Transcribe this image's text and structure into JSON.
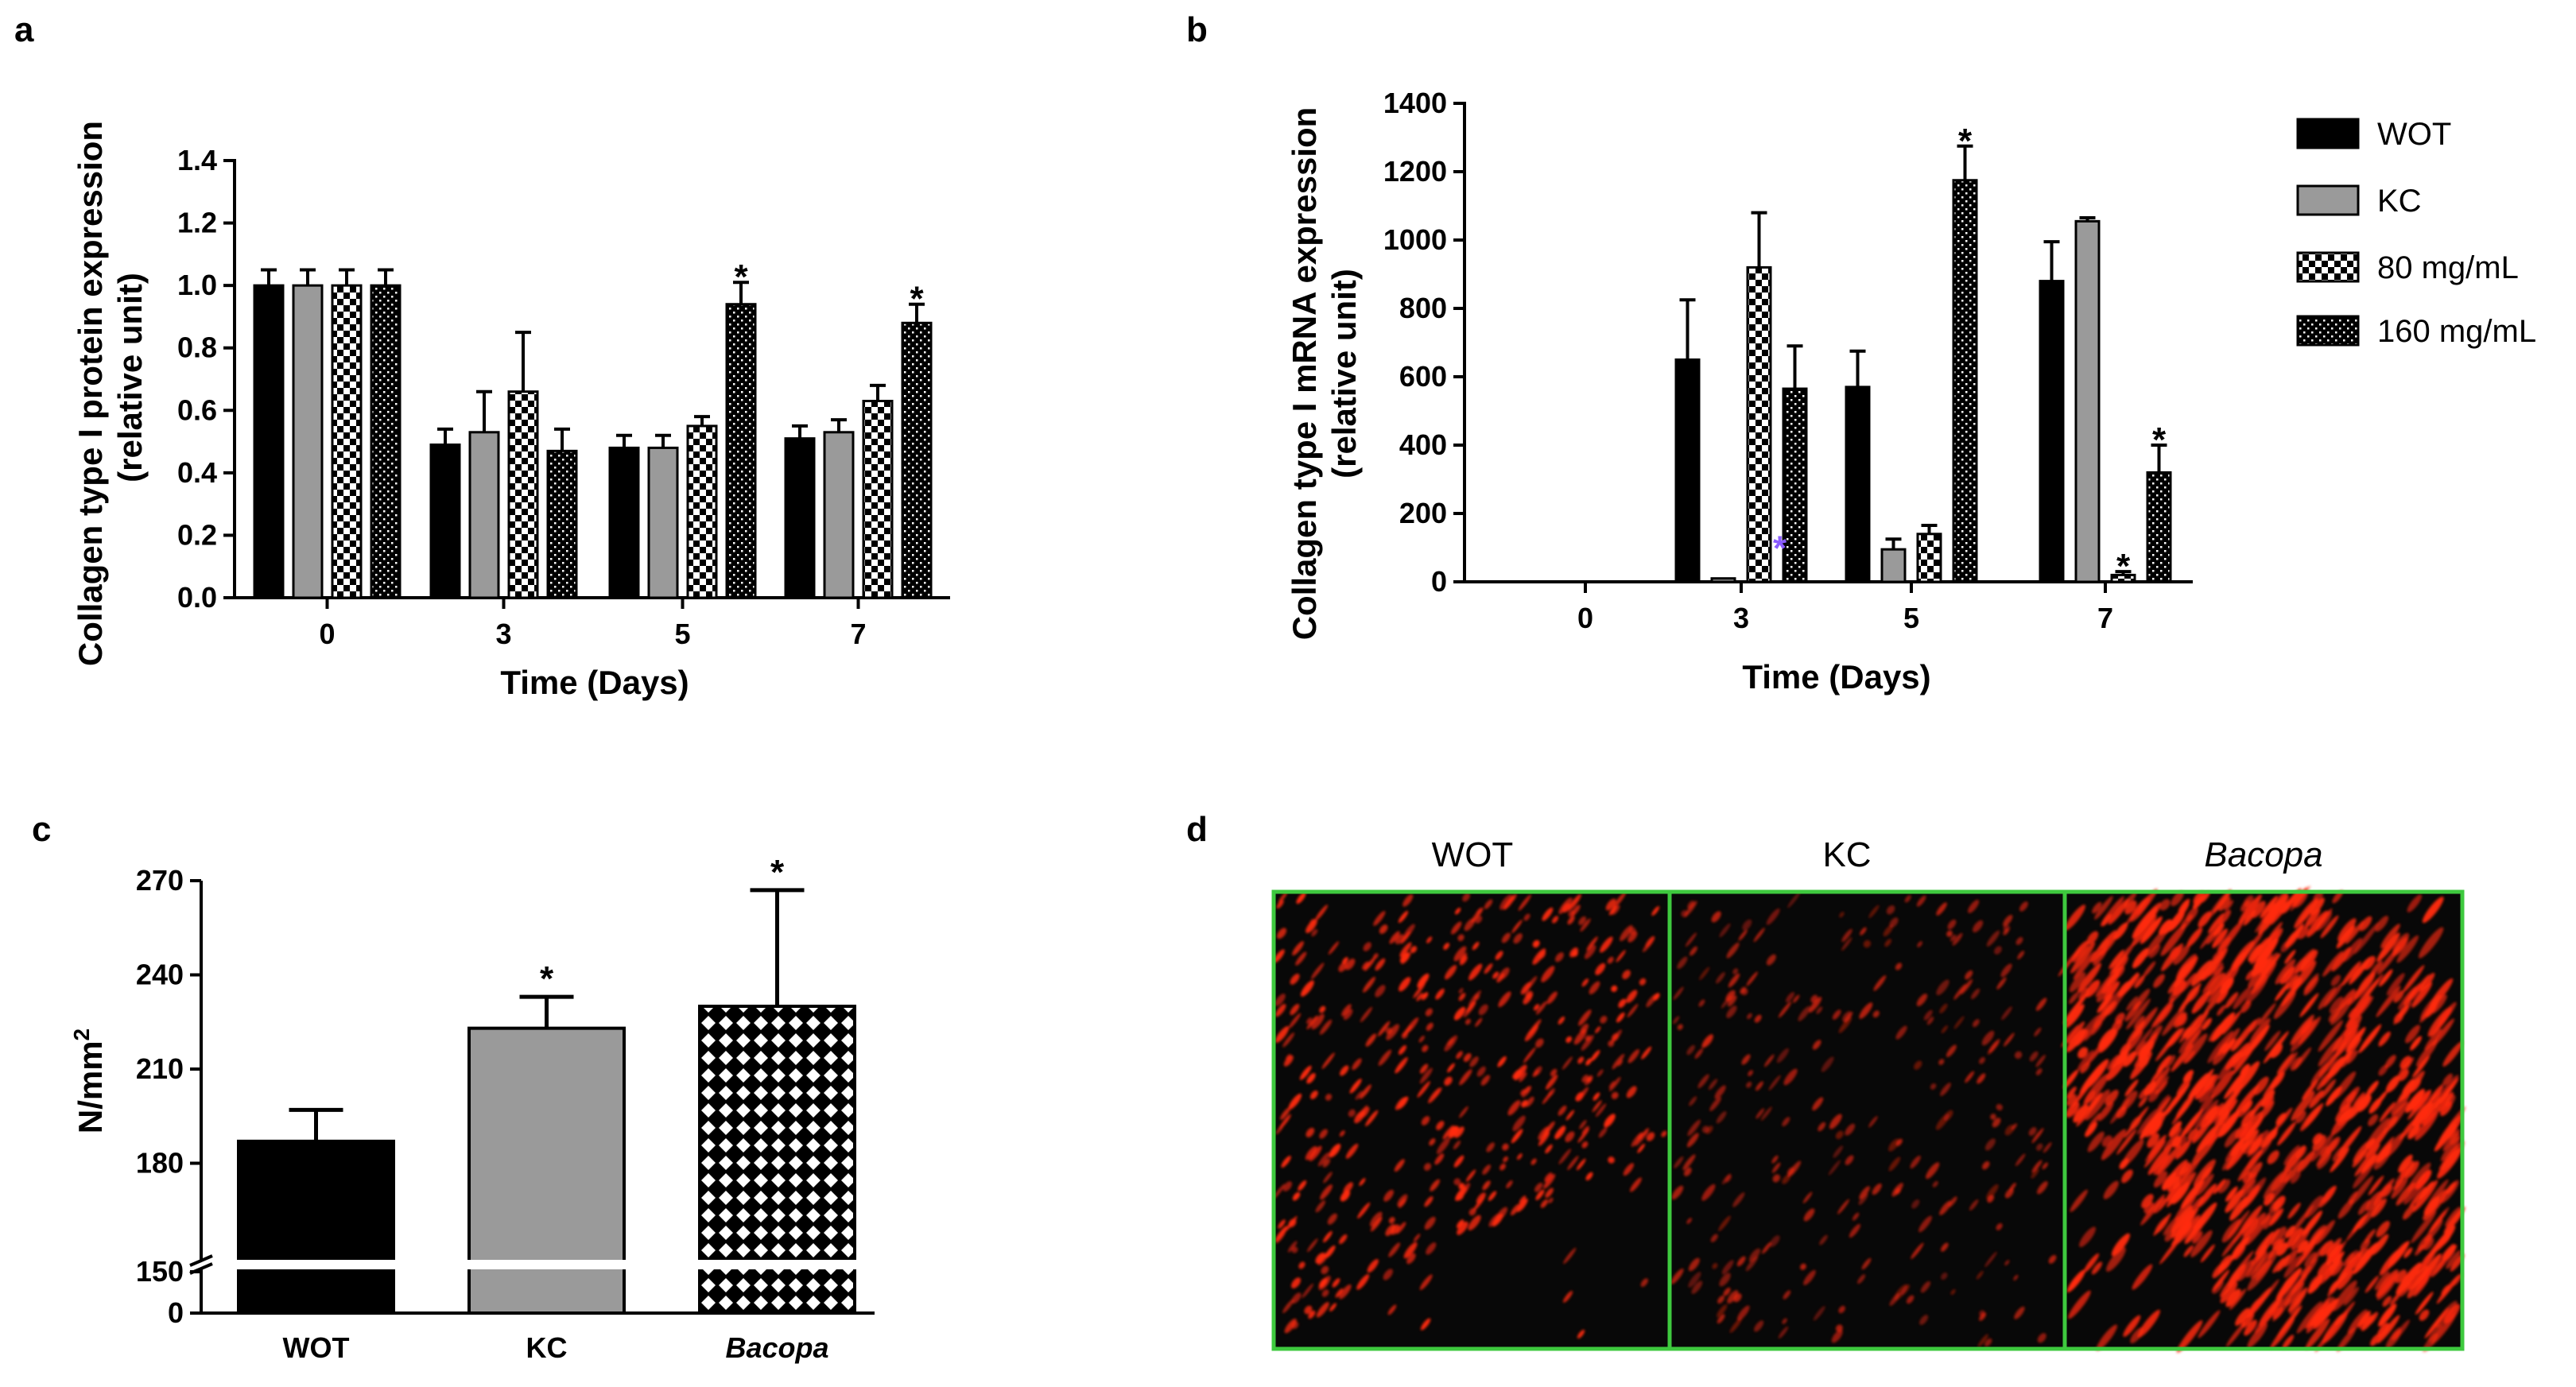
{
  "panels": {
    "a": "a",
    "b": "b",
    "c": "c",
    "d": "d"
  },
  "legend": [
    {
      "name": "WOT",
      "pattern": "solid-black"
    },
    {
      "name": "KC",
      "pattern": "solid-gray"
    },
    {
      "name": "80 mg/mL",
      "pattern": "checker"
    },
    {
      "name": "160 mg/mL",
      "pattern": "dots"
    }
  ],
  "colors": {
    "black": "#000000",
    "gray": "#9a9a9a",
    "frame": "#3ec93e",
    "stain": "#ff2a10"
  },
  "chart_data": [
    {
      "id": "a",
      "type": "bar",
      "ylabel_line1": "Collagen type I protein expression",
      "ylabel_line2": "(relative unit)",
      "xlabel": "Time (Days)",
      "categories": [
        "0",
        "3",
        "5",
        "7"
      ],
      "ylim": [
        0,
        1.4
      ],
      "yticks": [
        "0.0",
        "0.2",
        "0.4",
        "0.6",
        "0.8",
        "1.0",
        "1.2",
        "1.4"
      ],
      "series": [
        {
          "name": "WOT",
          "values": [
            1.0,
            0.49,
            0.48,
            0.51
          ],
          "errors": [
            0.05,
            0.05,
            0.04,
            0.04
          ]
        },
        {
          "name": "KC",
          "values": [
            1.0,
            0.53,
            0.48,
            0.53
          ],
          "errors": [
            0.05,
            0.13,
            0.04,
            0.04
          ]
        },
        {
          "name": "80 mg/mL",
          "values": [
            1.0,
            0.66,
            0.55,
            0.63
          ],
          "errors": [
            0.05,
            0.19,
            0.03,
            0.05
          ]
        },
        {
          "name": "160 mg/mL",
          "values": [
            1.0,
            0.47,
            0.94,
            0.88
          ],
          "errors": [
            0.05,
            0.07,
            0.07,
            0.06
          ]
        }
      ],
      "annotations": [
        {
          "text": "*",
          "category": "5",
          "series": "160 mg/mL"
        },
        {
          "text": "*",
          "category": "7",
          "series": "160 mg/mL"
        }
      ]
    },
    {
      "id": "b",
      "type": "bar",
      "ylabel_line1": "Collagen type I mRNA expression",
      "ylabel_line2": "(relative unit)",
      "xlabel": "Time (Days)",
      "categories": [
        "0",
        "3",
        "5",
        "7"
      ],
      "ylim": [
        0,
        1400
      ],
      "yticks": [
        "0",
        "200",
        "400",
        "600",
        "800",
        "1000",
        "1200",
        "1400"
      ],
      "series": [
        {
          "name": "WOT",
          "values": [
            0,
            650,
            570,
            880
          ],
          "errors": [
            0,
            175,
            105,
            115
          ]
        },
        {
          "name": "KC",
          "values": [
            0,
            10,
            95,
            1055
          ],
          "errors": [
            0,
            0,
            30,
            10
          ]
        },
        {
          "name": "80 mg/mL",
          "values": [
            0,
            920,
            140,
            20
          ],
          "errors": [
            0,
            160,
            25,
            10
          ]
        },
        {
          "name": "160 mg/mL",
          "values": [
            0,
            565,
            1175,
            320
          ],
          "errors": [
            0,
            125,
            100,
            80
          ]
        }
      ],
      "annotations": [
        {
          "text": "*",
          "category": "3",
          "series": "80 mg/mL",
          "color": "#8a5cff"
        },
        {
          "text": "*",
          "category": "5",
          "series": "160 mg/mL"
        },
        {
          "text": "*",
          "category": "7",
          "series": "80 mg/mL"
        },
        {
          "text": "*",
          "category": "7",
          "series": "160 mg/mL"
        }
      ]
    },
    {
      "id": "c",
      "type": "bar",
      "ylabel": "N/mm",
      "ylabel_sup": "2",
      "categories": [
        "WOT",
        "KC",
        "Bacopa"
      ],
      "values": [
        187,
        223,
        230
      ],
      "errors": [
        10,
        10,
        37
      ],
      "ylim": [
        150,
        270
      ],
      "axis_break": [
        0,
        150
      ],
      "yticks": [
        "0",
        "150",
        "180",
        "210",
        "240",
        "270"
      ],
      "annotations": [
        {
          "text": "*",
          "category": "KC"
        },
        {
          "text": "*",
          "category": "Bacopa"
        }
      ]
    }
  ],
  "images": {
    "titles": [
      "WOT",
      "KC",
      "Bacopa"
    ]
  }
}
